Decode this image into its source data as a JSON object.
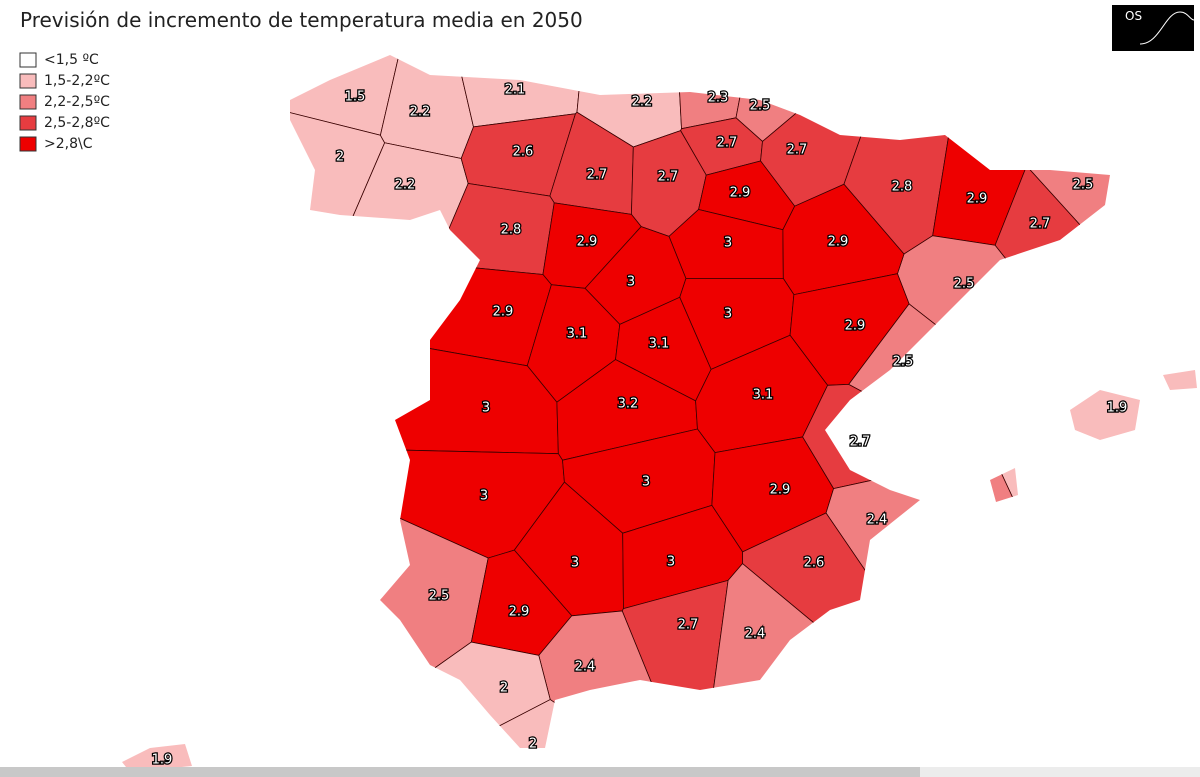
{
  "title": "Previsión de incremento de temperatura media en 2050",
  "logo": "OS",
  "legend": {
    "items": [
      {
        "label": "<1,5 ºC",
        "color": "#ffffff"
      },
      {
        "label": "1,5-2,2ºC",
        "color": "#f9bcbc"
      },
      {
        "label": "2,2-2,5ºC",
        "color": "#f07f81"
      },
      {
        "label": "2,5-2,8ºC",
        "color": "#e63c40"
      },
      {
        "label": ">2,8\\C",
        "color": "#ee0000"
      }
    ]
  },
  "map": {
    "regions": [
      {
        "value": 1.5,
        "color": "#f9bcbc"
      },
      {
        "value": 2,
        "color": "#f9bcbc"
      },
      {
        "value": 2.2,
        "color": "#f9bcbc"
      },
      {
        "value": 2.2,
        "color": "#f9bcbc"
      },
      {
        "value": 2.1,
        "color": "#f9bcbc"
      },
      {
        "value": 2.2,
        "color": "#f9bcbc"
      },
      {
        "value": 2.3,
        "color": "#f07f81"
      },
      {
        "value": 2.5,
        "color": "#f07f81"
      },
      {
        "value": 2.7,
        "color": "#e63c40"
      },
      {
        "value": 2.7,
        "color": "#e63c40"
      },
      {
        "value": 2.6,
        "color": "#e63c40"
      },
      {
        "value": 2.7,
        "color": "#e63c40"
      },
      {
        "value": 2.7,
        "color": "#e63c40"
      },
      {
        "value": 2.9,
        "color": "#ee0000"
      },
      {
        "value": 2.8,
        "color": "#e63c40"
      },
      {
        "value": 2.9,
        "color": "#ee0000"
      },
      {
        "value": 2.5,
        "color": "#f07f81"
      },
      {
        "value": 2.7,
        "color": "#e63c40"
      },
      {
        "value": 2.5,
        "color": "#f07f81"
      },
      {
        "value": 2.8,
        "color": "#e63c40"
      },
      {
        "value": 2.9,
        "color": "#ee0000"
      },
      {
        "value": 3,
        "color": "#ee0000"
      },
      {
        "value": 2.9,
        "color": "#ee0000"
      },
      {
        "value": 3,
        "color": "#ee0000"
      },
      {
        "value": 2.9,
        "color": "#ee0000"
      },
      {
        "value": 3.1,
        "color": "#ee0000"
      },
      {
        "value": 3,
        "color": "#ee0000"
      },
      {
        "value": 2.9,
        "color": "#ee0000"
      },
      {
        "value": 3.1,
        "color": "#ee0000"
      },
      {
        "value": 2.5,
        "color": "#f07f81"
      },
      {
        "value": 3,
        "color": "#ee0000"
      },
      {
        "value": 3.2,
        "color": "#ee0000"
      },
      {
        "value": 3.1,
        "color": "#ee0000"
      },
      {
        "value": 2.7,
        "color": "#e63c40"
      },
      {
        "value": 1.9,
        "color": "#f9bcbc"
      },
      {
        "value": 3,
        "color": "#ee0000"
      },
      {
        "value": 3,
        "color": "#ee0000"
      },
      {
        "value": 2.9,
        "color": "#ee0000"
      },
      {
        "value": 2.4,
        "color": "#f07f81"
      },
      {
        "value": 3,
        "color": "#ee0000"
      },
      {
        "value": 3,
        "color": "#ee0000"
      },
      {
        "value": 2.6,
        "color": "#e63c40"
      },
      {
        "value": 2.5,
        "color": "#f07f81"
      },
      {
        "value": 2.9,
        "color": "#ee0000"
      },
      {
        "value": 2.7,
        "color": "#e63c40"
      },
      {
        "value": 2.4,
        "color": "#f07f81"
      },
      {
        "value": 2.4,
        "color": "#f07f81"
      },
      {
        "value": 2,
        "color": "#f9bcbc"
      },
      {
        "value": 2,
        "color": "#f9bcbc"
      },
      {
        "value": 1.9,
        "color": "#f9bcbc"
      }
    ]
  }
}
